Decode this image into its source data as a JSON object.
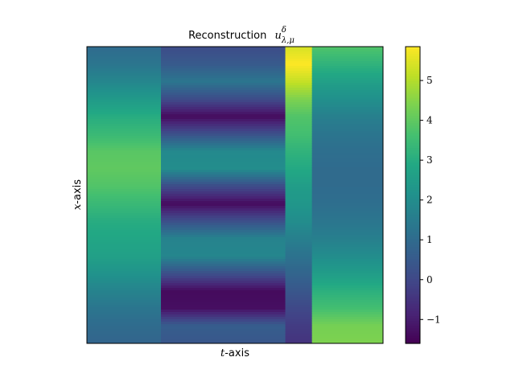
{
  "chart_data": {
    "type": "heatmap",
    "title": {
      "text": "Reconstruction",
      "symbol": "u",
      "superscript": "δ",
      "subscript": "λ,μ"
    },
    "xlabel": {
      "var": "t",
      "suffix": "-axis"
    },
    "ylabel": {
      "var": "x",
      "suffix": "-axis"
    },
    "colormap": "viridis",
    "colorbar": {
      "min": -1.6,
      "max": 5.85,
      "ticks": [
        -1,
        0,
        1,
        2,
        3,
        4,
        5
      ],
      "tick_labels": [
        "−1",
        "0",
        "1",
        "2",
        "3",
        "4",
        "5"
      ]
    },
    "columns": [
      {
        "t_start": 0.0,
        "t_end": 0.25,
        "rows": [
          1.0,
          1.3,
          1.8,
          2.4,
          3.0,
          3.4,
          3.9,
          4.0,
          3.8,
          3.4,
          3.0,
          2.8,
          2.6,
          2.2,
          1.7,
          1.3,
          1.0,
          0.8
        ]
      },
      {
        "t_start": 0.25,
        "t_end": 0.67,
        "rows": [
          0.1,
          0.5,
          1.3,
          0.1,
          -1.4,
          0.2,
          1.9,
          2.0,
          0.1,
          -1.4,
          0.2,
          1.7,
          1.8,
          0.2,
          -1.4,
          -1.3,
          0.6,
          0.4
        ]
      },
      {
        "t_start": 0.67,
        "t_end": 0.76,
        "rows": [
          5.4,
          5.85,
          5.2,
          4.4,
          3.8,
          3.6,
          3.2,
          2.9,
          2.5,
          2.3,
          2.0,
          1.6,
          1.2,
          0.8,
          0.4,
          0.0,
          -0.3,
          -0.5
        ]
      },
      {
        "t_start": 0.76,
        "t_end": 1.0,
        "rows": [
          3.8,
          3.2,
          2.6,
          2.1,
          1.6,
          1.3,
          1.1,
          1.0,
          1.0,
          1.1,
          1.3,
          1.6,
          2.0,
          2.5,
          3.1,
          3.6,
          4.3,
          4.4
        ]
      }
    ]
  }
}
